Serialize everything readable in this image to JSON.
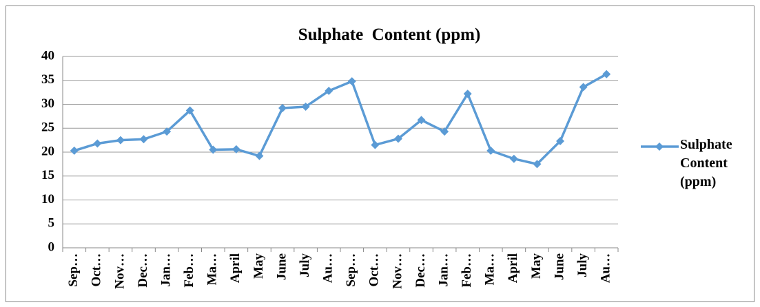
{
  "chart_data": {
    "type": "line",
    "title": "Sulphate  Content (ppm)",
    "categories": [
      "Sep…",
      "Oct…",
      "Nov…",
      "Dec…",
      "Jan…",
      "Feb…",
      "Ma…",
      "April",
      "May",
      "June",
      "July",
      "Au…",
      "Sep…",
      "Oct…",
      "Nov…",
      "Dec…",
      "Jan…",
      "Feb…",
      "Ma…",
      "April",
      "May",
      "June",
      "July",
      "Au…"
    ],
    "series": [
      {
        "name": "Sulphate Content (ppm)",
        "color": "#5b9bd5",
        "values": [
          20.3,
          21.8,
          22.5,
          22.7,
          24.3,
          28.7,
          20.5,
          20.6,
          19.2,
          29.2,
          29.5,
          32.8,
          34.8,
          21.5,
          22.8,
          26.7,
          24.3,
          32.2,
          20.3,
          18.6,
          17.5,
          22.3,
          33.6,
          36.3
        ]
      }
    ],
    "ylim": [
      0,
      40
    ],
    "yticks": [
      0,
      5,
      10,
      15,
      20,
      25,
      30,
      35,
      40
    ],
    "grid": true,
    "legend": "right"
  }
}
